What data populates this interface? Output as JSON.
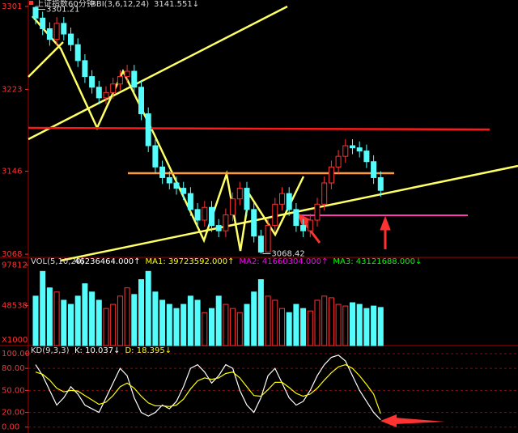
{
  "chart_data": [
    {
      "type": "candlestick",
      "title": "上证指数60分钟",
      "legend": "BBI(3,6,12,24)",
      "legend_value": "3141.551↓",
      "annotations": [
        "3301.21",
        "3068.42"
      ],
      "up_color": "#ff3232",
      "down_color": "#54fcfc",
      "ylim": [
        3065,
        3307
      ],
      "yticks": [
        3301,
        3223,
        3146,
        3068
      ],
      "open": [
        3300,
        3290,
        3280,
        3270,
        3285,
        3275,
        3265,
        3250,
        3235,
        3225,
        3215,
        3220,
        3228,
        3235,
        3240,
        3225,
        3200,
        3170,
        3150,
        3140,
        3135,
        3130,
        3125,
        3110,
        3100,
        3112,
        3095,
        3090,
        3105,
        3120,
        3130,
        3110,
        3085,
        3070,
        3095,
        3115,
        3125,
        3110,
        3095,
        3090,
        3100,
        3115,
        3135,
        3150,
        3160,
        3170,
        3168,
        3165,
        3155,
        3140
      ],
      "high": [
        3301.21,
        3296,
        3286,
        3291,
        3291,
        3281,
        3271,
        3256,
        3241,
        3231,
        3226,
        3234,
        3241,
        3246,
        3246,
        3231,
        3206,
        3176,
        3156,
        3146,
        3141,
        3136,
        3131,
        3116,
        3118,
        3118,
        3101,
        3111,
        3126,
        3136,
        3136,
        3116,
        3091,
        3101,
        3121,
        3131,
        3131,
        3116,
        3101,
        3106,
        3121,
        3141,
        3156,
        3166,
        3176,
        3176,
        3174,
        3171,
        3161,
        3146
      ],
      "low": [
        3284,
        3274,
        3264,
        3264,
        3269,
        3259,
        3244,
        3229,
        3219,
        3209,
        3209,
        3214,
        3222,
        3229,
        3219,
        3194,
        3164,
        3144,
        3134,
        3129,
        3124,
        3119,
        3104,
        3094,
        3094,
        3089,
        3084,
        3084,
        3099,
        3114,
        3104,
        3079,
        3068.42,
        3070,
        3089,
        3109,
        3104,
        3089,
        3084,
        3084,
        3094,
        3109,
        3129,
        3144,
        3154,
        3162,
        3159,
        3149,
        3134,
        3122
      ],
      "close": [
        3290,
        3280,
        3270,
        3285,
        3275,
        3265,
        3250,
        3235,
        3225,
        3215,
        3220,
        3228,
        3235,
        3240,
        3225,
        3200,
        3170,
        3150,
        3140,
        3135,
        3130,
        3125,
        3110,
        3100,
        3112,
        3095,
        3090,
        3105,
        3120,
        3130,
        3110,
        3085,
        3070,
        3095,
        3115,
        3125,
        3110,
        3095,
        3090,
        3100,
        3115,
        3135,
        3150,
        3160,
        3170,
        3168,
        3165,
        3155,
        3140,
        3128
      ]
    },
    {
      "type": "bar",
      "title": "VOL(5,10,20)",
      "readouts": [
        "46236464.000↑",
        "MA1: 39723592.000↑",
        "MA2: 41660304.000↑",
        "MA3: 43121688.000↓"
      ],
      "readout_colors": [
        "#ffffff",
        "#ffff00",
        "#ff00ff",
        "#00ff00"
      ],
      "unit_label": "X1000",
      "ylim": [
        0,
        107000
      ],
      "yticks": [
        97812,
        48538
      ],
      "values": [
        60000,
        90000,
        70000,
        65000,
        55000,
        50000,
        60000,
        75000,
        65000,
        55000,
        45000,
        50000,
        60000,
        70000,
        62000,
        80000,
        90000,
        65000,
        55000,
        50000,
        45000,
        50000,
        60000,
        55000,
        40000,
        45000,
        60000,
        50000,
        45000,
        40000,
        50000,
        65000,
        80000,
        60000,
        55000,
        45000,
        40000,
        50000,
        45000,
        42000,
        55000,
        60000,
        58000,
        50000,
        48000,
        52000,
        50000,
        45000,
        48000,
        46236
      ]
    },
    {
      "type": "line",
      "title": "KD(9,3,3)",
      "readouts": [
        "K: 10.037↓",
        "D: 18.395↓"
      ],
      "readout_colors": [
        "#ffffff",
        "#ffff00"
      ],
      "ylim": [
        -8,
        111
      ],
      "yticks": [
        {
          "value": 100,
          "label": "100.00"
        },
        {
          "value": 80,
          "label": "80.00"
        },
        {
          "value": 50,
          "label": "50.00"
        },
        {
          "value": 20,
          "label": "20.00"
        },
        {
          "value": 0,
          "label": "0.00"
        }
      ],
      "grid": true,
      "series": [
        {
          "color": "#ffffff",
          "values": [
            85,
            70,
            50,
            30,
            40,
            55,
            45,
            30,
            25,
            20,
            40,
            60,
            80,
            70,
            40,
            20,
            15,
            20,
            30,
            25,
            35,
            55,
            80,
            85,
            75,
            60,
            70,
            85,
            80,
            50,
            30,
            20,
            40,
            70,
            80,
            60,
            40,
            30,
            35,
            50,
            70,
            85,
            95,
            98,
            90,
            70,
            50,
            35,
            20,
            10.037
          ]
        },
        {
          "color": "#ffff00",
          "values": [
            75,
            72,
            64,
            53,
            48,
            50,
            49,
            43,
            37,
            31,
            34,
            43,
            55,
            60,
            53,
            42,
            33,
            29,
            29,
            28,
            30,
            38,
            52,
            63,
            67,
            65,
            67,
            73,
            75,
            67,
            55,
            43,
            42,
            51,
            61,
            61,
            54,
            46,
            42,
            45,
            53,
            64,
            74,
            82,
            85,
            80,
            70,
            58,
            45,
            18.395
          ]
        }
      ]
    }
  ]
}
